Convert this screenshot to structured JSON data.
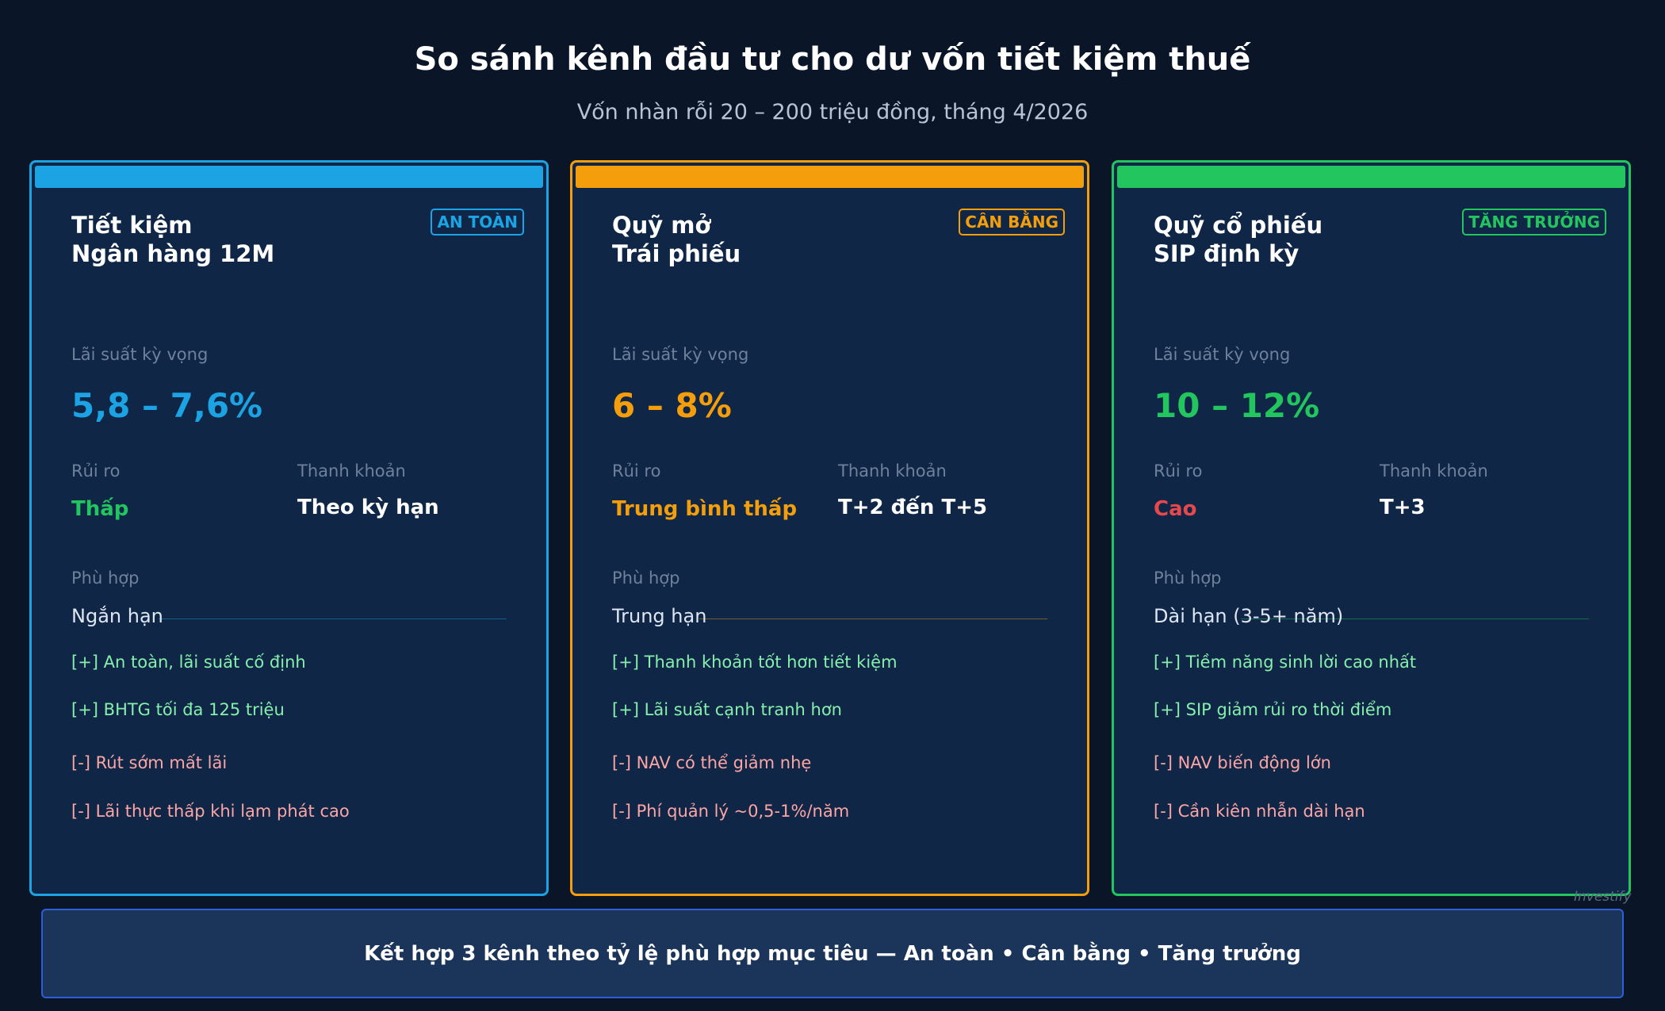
{
  "header": {
    "title": "So sánh kênh đầu tư cho dư vốn tiết kiệm thuế",
    "subtitle": "Vốn nhàn rỗi 20 – 200 triệu đồng, tháng 4/2026"
  },
  "cards": [
    {
      "title_lines": [
        "Tiết kiệm",
        "Ngân hàng 12M"
      ],
      "badge": "AN TOÀN",
      "rate_label": "Lãi suất kỳ vọng",
      "rate": "5,8 – 7,6%",
      "risk_label": "Rủi ro",
      "risk": "Thấp",
      "liquidity_label": "Thanh khoản",
      "liquidity": "Theo kỳ hạn",
      "fit_label": "Phù hợp",
      "fit": "Ngắn hạn",
      "pros": [
        "[+] An toàn, lãi suất cố định",
        "[+] BHTG tối đa 125 triệu"
      ],
      "cons": [
        "[-] Rút sớm mất lãi",
        "[-] Lãi thực thấp khi lạm phát cao"
      ]
    },
    {
      "title_lines": [
        "Quỹ mở",
        "Trái phiếu"
      ],
      "badge": "CÂN BẰNG",
      "rate_label": "Lãi suất kỳ vọng",
      "rate": "6 – 8%",
      "risk_label": "Rủi ro",
      "risk": "Trung bình thấp",
      "liquidity_label": "Thanh khoản",
      "liquidity": "T+2 đến T+5",
      "fit_label": "Phù hợp",
      "fit": "Trung hạn",
      "pros": [
        "[+] Thanh khoản tốt hơn tiết kiệm",
        "[+] Lãi suất cạnh tranh hơn"
      ],
      "cons": [
        "[-] NAV có thể giảm nhẹ",
        "[-] Phí quản lý ~0,5-1%/năm"
      ]
    },
    {
      "title_lines": [
        "Quỹ cổ phiếu",
        "SIP định kỳ"
      ],
      "badge": "TĂNG TRƯỞNG",
      "rate_label": "Lãi suất kỳ vọng",
      "rate": "10 – 12%",
      "risk_label": "Rủi ro",
      "risk": "Cao",
      "liquidity_label": "Thanh khoản",
      "liquidity": "T+3",
      "fit_label": "Phù hợp",
      "fit": "Dài hạn (3-5+ năm)",
      "pros": [
        "[+] Tiềm năng sinh lời cao nhất",
        "[+] SIP giảm rủi ro thời điểm"
      ],
      "cons": [
        "[-] NAV biến động lớn",
        "[-] Cần kiên nhẫn dài hạn"
      ]
    }
  ],
  "footer": "Kết hợp 3 kênh theo tỷ lệ phù hợp mục tiêu — An toàn • Cân bằng • Tăng trưởng",
  "watermark": "Investify"
}
